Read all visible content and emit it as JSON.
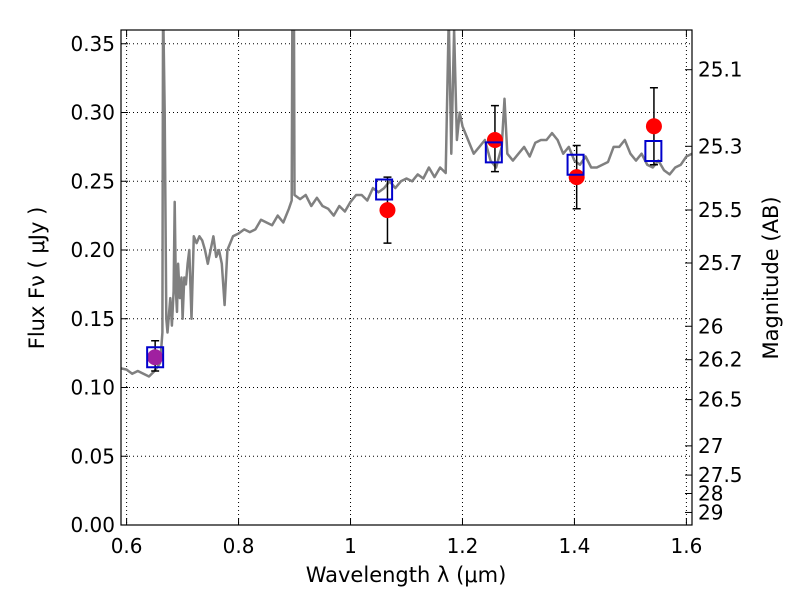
{
  "chart_data": {
    "type": "scatter",
    "xlabel": "Wavelength  λ (μm)",
    "ylabel": "Flux  Fν  ( μJy )",
    "ylabel_right": "Magnitude (AB)",
    "xlim": [
      0.59,
      1.61
    ],
    "ylim": [
      0.0,
      0.36
    ],
    "grid": true,
    "x_ticks": [
      {
        "v": 0.6,
        "label": "0.6"
      },
      {
        "v": 0.8,
        "label": "0.8"
      },
      {
        "v": 1.0,
        "label": "1"
      },
      {
        "v": 1.2,
        "label": "1.2"
      },
      {
        "v": 1.4,
        "label": "1.4"
      },
      {
        "v": 1.6,
        "label": "1.6"
      }
    ],
    "y_ticks": [
      {
        "v": 0.0,
        "label": "0.00"
      },
      {
        "v": 0.05,
        "label": "0.05"
      },
      {
        "v": 0.1,
        "label": "0.10"
      },
      {
        "v": 0.15,
        "label": "0.15"
      },
      {
        "v": 0.2,
        "label": "0.20"
      },
      {
        "v": 0.25,
        "label": "0.25"
      },
      {
        "v": 0.3,
        "label": "0.30"
      },
      {
        "v": 0.35,
        "label": "0.35"
      }
    ],
    "mag_ticks": [
      {
        "mag": 25.1,
        "label": "25.1"
      },
      {
        "mag": 25.3,
        "label": "25.3"
      },
      {
        "mag": 25.5,
        "label": "25.5"
      },
      {
        "mag": 25.7,
        "label": "25.7"
      },
      {
        "mag": 26.0,
        "label": "26"
      },
      {
        "mag": 26.2,
        "label": "26.2"
      },
      {
        "mag": 26.5,
        "label": "26.5"
      },
      {
        "mag": 27.0,
        "label": "27"
      },
      {
        "mag": 27.5,
        "label": "27.5"
      },
      {
        "mag": 28.0,
        "label": "28"
      },
      {
        "mag": 29.0,
        "label": "29"
      }
    ],
    "series": [
      {
        "kind": "line",
        "color": "#808080",
        "x": [
          0.59,
          0.6,
          0.61,
          0.62,
          0.63,
          0.64,
          0.65,
          0.66,
          0.664,
          0.665,
          0.666,
          0.668,
          0.671,
          0.673,
          0.675,
          0.678,
          0.681,
          0.684,
          0.686,
          0.688,
          0.69,
          0.692,
          0.695,
          0.698,
          0.7,
          0.703,
          0.706,
          0.709,
          0.712,
          0.716,
          0.72,
          0.725,
          0.73,
          0.735,
          0.74,
          0.745,
          0.75,
          0.755,
          0.76,
          0.765,
          0.77,
          0.775,
          0.78,
          0.79,
          0.8,
          0.81,
          0.82,
          0.83,
          0.84,
          0.85,
          0.86,
          0.87,
          0.88,
          0.89,
          0.895,
          0.896,
          0.899,
          0.9,
          0.91,
          0.92,
          0.93,
          0.94,
          0.95,
          0.96,
          0.97,
          0.98,
          0.99,
          1.0,
          1.01,
          1.02,
          1.03,
          1.04,
          1.05,
          1.06,
          1.07,
          1.08,
          1.09,
          1.1,
          1.11,
          1.12,
          1.13,
          1.14,
          1.15,
          1.16,
          1.17,
          1.175,
          1.176,
          1.18,
          1.185,
          1.19,
          1.195,
          1.2,
          1.21,
          1.22,
          1.23,
          1.24,
          1.25,
          1.26,
          1.27,
          1.275,
          1.28,
          1.29,
          1.3,
          1.31,
          1.32,
          1.33,
          1.34,
          1.35,
          1.36,
          1.37,
          1.38,
          1.39,
          1.4,
          1.41,
          1.42,
          1.43,
          1.44,
          1.45,
          1.46,
          1.47,
          1.48,
          1.49,
          1.5,
          1.51,
          1.52,
          1.53,
          1.54,
          1.55,
          1.56,
          1.57,
          1.58,
          1.59,
          1.6,
          1.61
        ],
        "y": [
          0.114,
          0.113,
          0.11,
          0.112,
          0.11,
          0.108,
          0.112,
          0.118,
          0.14,
          0.36,
          0.36,
          0.3,
          0.15,
          0.14,
          0.15,
          0.165,
          0.145,
          0.17,
          0.235,
          0.17,
          0.155,
          0.19,
          0.165,
          0.18,
          0.15,
          0.18,
          0.175,
          0.19,
          0.2,
          0.15,
          0.21,
          0.205,
          0.21,
          0.207,
          0.2,
          0.19,
          0.2,
          0.21,
          0.195,
          0.2,
          0.19,
          0.16,
          0.2,
          0.21,
          0.212,
          0.215,
          0.213,
          0.215,
          0.222,
          0.22,
          0.218,
          0.225,
          0.22,
          0.23,
          0.236,
          0.36,
          0.36,
          0.24,
          0.237,
          0.24,
          0.232,
          0.238,
          0.232,
          0.23,
          0.225,
          0.232,
          0.228,
          0.235,
          0.24,
          0.24,
          0.236,
          0.245,
          0.242,
          0.245,
          0.25,
          0.245,
          0.25,
          0.252,
          0.25,
          0.255,
          0.252,
          0.26,
          0.253,
          0.26,
          0.256,
          0.36,
          0.36,
          0.27,
          0.36,
          0.28,
          0.3,
          0.29,
          0.28,
          0.27,
          0.275,
          0.28,
          0.265,
          0.26,
          0.275,
          0.31,
          0.27,
          0.265,
          0.27,
          0.275,
          0.268,
          0.278,
          0.28,
          0.28,
          0.285,
          0.28,
          0.27,
          0.275,
          0.265,
          0.262,
          0.268,
          0.26,
          0.26,
          0.262,
          0.264,
          0.275,
          0.275,
          0.28,
          0.27,
          0.265,
          0.27,
          0.262,
          0.26,
          0.265,
          0.258,
          0.255,
          0.26,
          0.262,
          0.268,
          0.27
        ]
      },
      {
        "kind": "measured",
        "color": "#ff0000",
        "x": [
          0.651,
          1.066,
          1.258,
          1.404,
          1.542
        ],
        "y": [
          0.122,
          0.229,
          0.28,
          0.253,
          0.29
        ],
        "err_lo": [
          0.01,
          0.024,
          0.023,
          0.023,
          0.028
        ],
        "err_hi": [
          0.012,
          0.024,
          0.025,
          0.023,
          0.028
        ]
      },
      {
        "kind": "model",
        "color": "#0000cc",
        "x": [
          0.651,
          1.06,
          1.256,
          1.402,
          1.541
        ],
        "y": [
          0.122,
          0.244,
          0.271,
          0.262,
          0.272
        ]
      }
    ]
  }
}
